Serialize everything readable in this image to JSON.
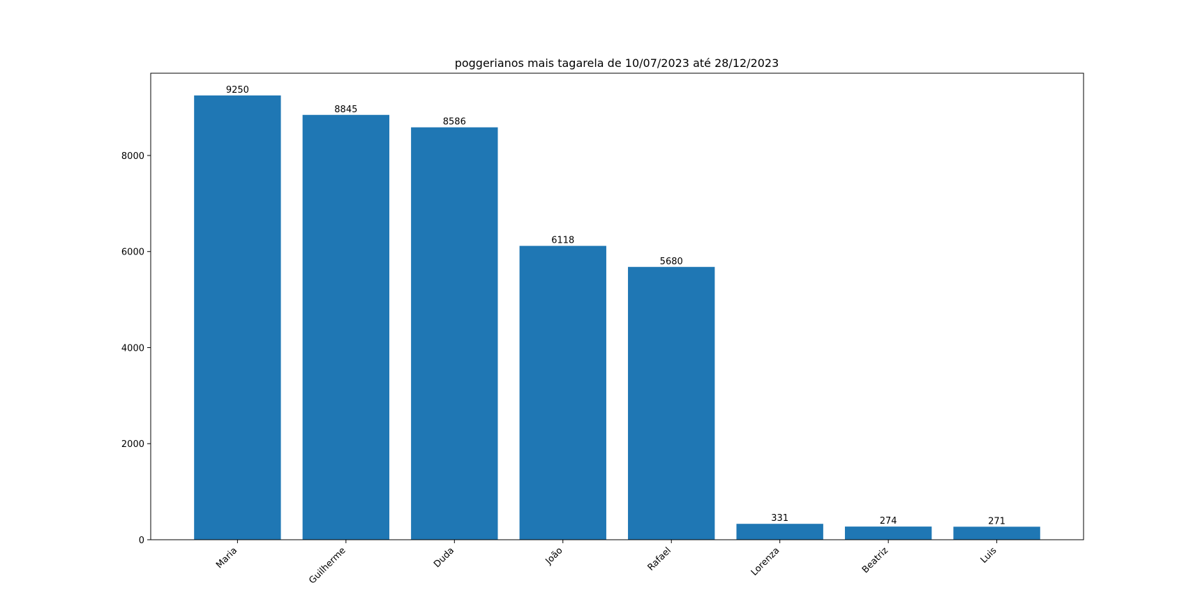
{
  "chart_data": {
    "type": "bar",
    "title": "poggerianos mais tagarela de 10/07/2023 até 28/12/2023",
    "xlabel": "",
    "ylabel": "",
    "categories": [
      "Maria",
      "Guilherme",
      "Duda",
      "João",
      "Rafael",
      "Lorenza",
      "Beatriz",
      "Luis"
    ],
    "values": [
      9250,
      8845,
      8586,
      6118,
      5680,
      331,
      274,
      271
    ],
    "ylim": [
      0,
      9712.5
    ],
    "yticks": [
      0,
      2000,
      4000,
      6000,
      8000
    ],
    "ytick_labels": [
      "0",
      "2000",
      "4000",
      "6000",
      "8000"
    ],
    "data_labels": [
      "9250",
      "8845",
      "8586",
      "6118",
      "5680",
      "331",
      "274",
      "271"
    ],
    "bar_color": "#1f77b4",
    "grid": false,
    "legend": "none",
    "xtick_rotation_deg": 45
  }
}
